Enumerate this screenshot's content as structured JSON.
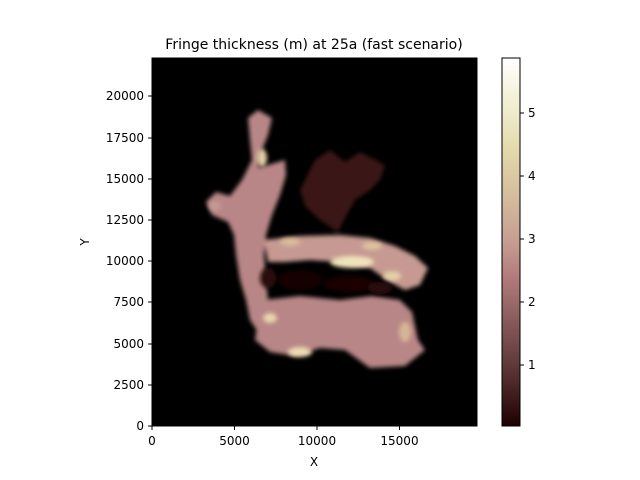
{
  "chart_data": {
    "type": "heatmap",
    "title": "Fringe thickness (m) at 25a (fast scenario)",
    "xlabel": "X",
    "ylabel": "Y",
    "xlim": [
      0,
      19700
    ],
    "ylim": [
      0,
      22300
    ],
    "xticks": [
      0,
      5000,
      10000,
      15000
    ],
    "xtick_labels": [
      "0",
      "5000",
      "10000",
      "15000"
    ],
    "yticks": [
      0,
      2500,
      5000,
      7500,
      10000,
      12500,
      15000,
      17500,
      20000
    ],
    "ytick_labels": [
      "0",
      "2500",
      "5000",
      "7500",
      "10000",
      "12500",
      "15000",
      "17500",
      "20000"
    ],
    "colorbar": {
      "colormap": "pink",
      "range": [
        0.02,
        5.85
      ],
      "ticks": [
        1,
        2,
        3,
        4,
        5
      ],
      "tick_labels": [
        "1",
        "2",
        "3",
        "4",
        "5"
      ]
    },
    "background_color": "#000000",
    "approximate_value_regions": [
      {
        "region": "western north-south band",
        "x": [
          3500,
          8500
        ],
        "y": [
          4000,
          19000
        ],
        "value_range": [
          1.5,
          3.5
        ]
      },
      {
        "region": "central east-west band",
        "x": [
          6000,
          16500
        ],
        "y": [
          8500,
          12500
        ],
        "value_range": [
          1.5,
          5.0
        ]
      },
      {
        "region": "southern east-west band",
        "x": [
          5500,
          16500
        ],
        "y": [
          3500,
          8000
        ],
        "value_range": [
          1.5,
          4.5
        ]
      },
      {
        "region": "northern patchy area",
        "x": [
          10000,
          15000
        ],
        "y": [
          12500,
          16500
        ],
        "value_range": [
          0.1,
          1.0
        ]
      }
    ]
  }
}
